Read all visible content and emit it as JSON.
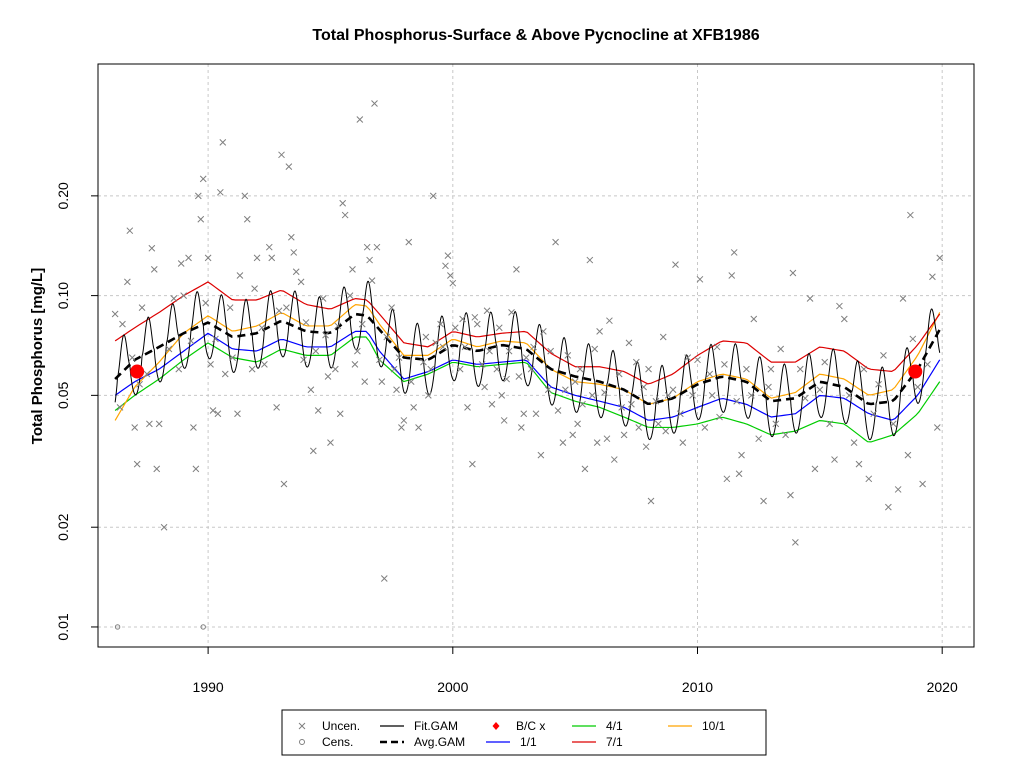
{
  "chart_data": {
    "type": "scatter",
    "title": "Total Phosphorus-Surface & Above Pycnocline at XFB1986",
    "xlabel": "",
    "ylabel": "Total Phosphorus [mg/L]",
    "xlim": [
      1985.5,
      2021.3
    ],
    "ylim": [
      0.0087,
      0.5
    ],
    "y_scale": "log",
    "grid": true,
    "x_ticks": [
      1990,
      2000,
      2010,
      2020
    ],
    "x_tick_labels": [
      "1990",
      "2000",
      "2010",
      "2020"
    ],
    "y_ticks": [
      0.01,
      0.02,
      0.05,
      0.1,
      0.2
    ],
    "y_tick_labels": [
      "0.01",
      "0.02",
      "0.05",
      "0.10",
      "0.20"
    ],
    "legend_position": "bottom",
    "colors": {
      "uncen": "#7f7f7f",
      "cens": "#7f7f7f",
      "fit": "#000000",
      "avg": "#000000",
      "bc": "#ff0000",
      "s11": "#0000ff",
      "s41": "#00cc00",
      "s71": "#dd0000",
      "s101": "#ffa500"
    },
    "legend": [
      {
        "key": "uncen",
        "label": "Uncen.",
        "symbol": "x"
      },
      {
        "key": "cens",
        "label": "Cens.",
        "symbol": "o"
      },
      {
        "key": "fit",
        "label": "Fit.GAM",
        "symbol": "line"
      },
      {
        "key": "avg",
        "label": "Avg.GAM",
        "symbol": "dash"
      },
      {
        "key": "bc",
        "label": "B/C x",
        "symbol": "diamond"
      },
      {
        "key": "s11",
        "label": "1/1",
        "symbol": "line"
      },
      {
        "key": "s41",
        "label": "4/1",
        "symbol": "line"
      },
      {
        "key": "s71",
        "label": "7/1",
        "symbol": "line"
      },
      {
        "key": "s101",
        "label": "10/1",
        "symbol": "line"
      }
    ],
    "bc_points": [
      {
        "x": 1987.1,
        "y": 0.059
      },
      {
        "x": 2018.9,
        "y": 0.059
      }
    ],
    "avg_gam": {
      "x": [
        1986.2,
        1987.0,
        1988.0,
        1989.0,
        1990.0,
        1991.0,
        1992.0,
        1993.0,
        1994.0,
        1995.0,
        1996.0,
        1996.5,
        1997.0,
        1998.0,
        1999.0,
        2000.0,
        2001.0,
        2002.0,
        2003.0,
        2004.0,
        2005.0,
        2006.0,
        2007.0,
        2008.0,
        2009.0,
        2010.0,
        2011.0,
        2012.0,
        2013.0,
        2014.0,
        2015.0,
        2016.0,
        2017.0,
        2018.0,
        2019.0,
        2019.9
      ],
      "y": [
        0.056,
        0.064,
        0.07,
        0.077,
        0.083,
        0.075,
        0.077,
        0.084,
        0.078,
        0.077,
        0.088,
        0.087,
        0.079,
        0.065,
        0.064,
        0.071,
        0.068,
        0.071,
        0.069,
        0.06,
        0.057,
        0.055,
        0.052,
        0.047,
        0.049,
        0.054,
        0.057,
        0.055,
        0.048,
        0.049,
        0.055,
        0.053,
        0.047,
        0.048,
        0.06,
        0.079
      ]
    },
    "series_1_1": {
      "x": [
        1986.2,
        1987.0,
        1988.0,
        1989.0,
        1990.0,
        1991.0,
        1992.0,
        1993.0,
        1994.0,
        1995.0,
        1996.0,
        1996.5,
        1997.0,
        1998.0,
        1999.0,
        2000.0,
        2001.0,
        2002.0,
        2003.0,
        2004.0,
        2005.0,
        2006.0,
        2007.0,
        2008.0,
        2009.0,
        2010.0,
        2011.0,
        2012.0,
        2013.0,
        2014.0,
        2015.0,
        2016.0,
        2017.0,
        2018.0,
        2019.0,
        2019.9
      ],
      "y": [
        0.05,
        0.055,
        0.06,
        0.068,
        0.077,
        0.069,
        0.068,
        0.074,
        0.07,
        0.07,
        0.078,
        0.078,
        0.068,
        0.056,
        0.059,
        0.064,
        0.062,
        0.063,
        0.064,
        0.053,
        0.05,
        0.048,
        0.046,
        0.042,
        0.043,
        0.046,
        0.049,
        0.047,
        0.043,
        0.044,
        0.05,
        0.049,
        0.044,
        0.042,
        0.05,
        0.064
      ]
    },
    "series_4_1": {
      "x": [
        1986.2,
        1987.0,
        1988.0,
        1989.0,
        1990.0,
        1991.0,
        1992.0,
        1993.0,
        1994.0,
        1995.0,
        1996.0,
        1996.5,
        1997.0,
        1998.0,
        1999.0,
        2000.0,
        2001.0,
        2002.0,
        2003.0,
        2004.0,
        2005.0,
        2006.0,
        2007.0,
        2008.0,
        2009.0,
        2010.0,
        2011.0,
        2012.0,
        2013.0,
        2014.0,
        2015.0,
        2016.0,
        2017.0,
        2018.0,
        2019.0,
        2019.9
      ],
      "y": [
        0.045,
        0.05,
        0.056,
        0.064,
        0.072,
        0.065,
        0.063,
        0.069,
        0.066,
        0.066,
        0.075,
        0.075,
        0.064,
        0.055,
        0.058,
        0.063,
        0.061,
        0.062,
        0.063,
        0.051,
        0.048,
        0.046,
        0.043,
        0.04,
        0.04,
        0.041,
        0.043,
        0.041,
        0.038,
        0.039,
        0.042,
        0.041,
        0.036,
        0.038,
        0.044,
        0.055
      ]
    },
    "series_7_1": {
      "x": [
        1986.2,
        1987.0,
        1988.0,
        1989.0,
        1990.0,
        1991.0,
        1992.0,
        1993.0,
        1994.0,
        1995.0,
        1996.0,
        1996.5,
        1997.0,
        1998.0,
        1999.0,
        2000.0,
        2001.0,
        2002.0,
        2003.0,
        2004.0,
        2005.0,
        2006.0,
        2007.0,
        2008.0,
        2009.0,
        2010.0,
        2011.0,
        2012.0,
        2013.0,
        2014.0,
        2015.0,
        2016.0,
        2017.0,
        2018.0,
        2019.0,
        2019.9
      ],
      "y": [
        0.073,
        0.08,
        0.089,
        0.1,
        0.11,
        0.097,
        0.097,
        0.104,
        0.094,
        0.091,
        0.098,
        0.097,
        0.088,
        0.072,
        0.07,
        0.078,
        0.075,
        0.077,
        0.078,
        0.067,
        0.061,
        0.061,
        0.059,
        0.054,
        0.058,
        0.066,
        0.073,
        0.072,
        0.063,
        0.063,
        0.07,
        0.068,
        0.06,
        0.059,
        0.071,
        0.088
      ]
    },
    "series_10_1": {
      "x": [
        1986.2,
        1987.0,
        1988.0,
        1989.0,
        1990.0,
        1991.0,
        1992.0,
        1993.0,
        1994.0,
        1995.0,
        1996.0,
        1996.5,
        1997.0,
        1998.0,
        1999.0,
        2000.0,
        2001.0,
        2002.0,
        2003.0,
        2004.0,
        2005.0,
        2006.0,
        2007.0,
        2008.0,
        2009.0,
        2010.0,
        2011.0,
        2012.0,
        2013.0,
        2014.0,
        2015.0,
        2016.0,
        2017.0,
        2018.0,
        2019.0,
        2019.9
      ],
      "y": [
        0.042,
        0.053,
        0.063,
        0.077,
        0.087,
        0.078,
        0.081,
        0.089,
        0.081,
        0.081,
        0.094,
        0.093,
        0.082,
        0.066,
        0.066,
        0.074,
        0.07,
        0.073,
        0.072,
        0.06,
        0.055,
        0.054,
        0.052,
        0.047,
        0.049,
        0.055,
        0.058,
        0.056,
        0.049,
        0.051,
        0.058,
        0.056,
        0.05,
        0.052,
        0.066,
        0.089
      ]
    },
    "fit_gam": {
      "x_start": 1986.2,
      "x_end": 2019.9,
      "period_years": 1.0,
      "peak_phase": 0.55,
      "amplitude_log": 0.33,
      "note_base": "avg_gam"
    },
    "uncen_points": [
      [
        1986.2,
        0.088
      ],
      [
        1986.4,
        0.046
      ],
      [
        1986.5,
        0.082
      ],
      [
        1986.7,
        0.11
      ],
      [
        1986.8,
        0.157
      ],
      [
        1986.9,
        0.065
      ],
      [
        1987.0,
        0.04
      ],
      [
        1987.1,
        0.031
      ],
      [
        1987.2,
        0.054
      ],
      [
        1987.3,
        0.092
      ],
      [
        1987.5,
        0.058
      ],
      [
        1987.6,
        0.041
      ],
      [
        1987.7,
        0.139
      ],
      [
        1987.8,
        0.12
      ],
      [
        1987.9,
        0.03
      ],
      [
        1988.0,
        0.041
      ],
      [
        1988.2,
        0.02
      ],
      [
        1988.4,
        0.069
      ],
      [
        1988.6,
        0.098
      ],
      [
        1988.8,
        0.06
      ],
      [
        1988.9,
        0.125
      ],
      [
        1989.0,
        0.1
      ],
      [
        1989.2,
        0.13
      ],
      [
        1989.3,
        0.073
      ],
      [
        1989.4,
        0.04
      ],
      [
        1989.5,
        0.03
      ],
      [
        1989.6,
        0.2
      ],
      [
        1989.7,
        0.17
      ],
      [
        1989.8,
        0.225
      ],
      [
        1989.9,
        0.095
      ],
      [
        1990.0,
        0.13
      ],
      [
        1990.1,
        0.062
      ],
      [
        1990.2,
        0.045
      ],
      [
        1990.3,
        0.074
      ],
      [
        1990.4,
        0.044
      ],
      [
        1990.5,
        0.205
      ],
      [
        1990.6,
        0.29
      ],
      [
        1990.7,
        0.058
      ],
      [
        1990.9,
        0.092
      ],
      [
        1991.0,
        0.065
      ],
      [
        1991.2,
        0.044
      ],
      [
        1991.3,
        0.115
      ],
      [
        1991.5,
        0.2
      ],
      [
        1991.6,
        0.17
      ],
      [
        1991.8,
        0.06
      ],
      [
        1991.9,
        0.105
      ],
      [
        1992.0,
        0.13
      ],
      [
        1992.2,
        0.08
      ],
      [
        1992.3,
        0.062
      ],
      [
        1992.5,
        0.14
      ],
      [
        1992.6,
        0.13
      ],
      [
        1992.8,
        0.046
      ],
      [
        1992.9,
        0.09
      ],
      [
        1993.0,
        0.266
      ],
      [
        1993.1,
        0.027
      ],
      [
        1993.2,
        0.092
      ],
      [
        1993.3,
        0.245
      ],
      [
        1993.4,
        0.15
      ],
      [
        1993.5,
        0.135
      ],
      [
        1993.6,
        0.118
      ],
      [
        1993.8,
        0.11
      ],
      [
        1993.9,
        0.064
      ],
      [
        1994.0,
        0.083
      ],
      [
        1994.2,
        0.052
      ],
      [
        1994.3,
        0.034
      ],
      [
        1994.4,
        0.068
      ],
      [
        1994.5,
        0.045
      ],
      [
        1994.7,
        0.098
      ],
      [
        1994.8,
        0.076
      ],
      [
        1994.9,
        0.057
      ],
      [
        1995.0,
        0.036
      ],
      [
        1995.2,
        0.06
      ],
      [
        1995.3,
        0.081
      ],
      [
        1995.4,
        0.044
      ],
      [
        1995.5,
        0.19
      ],
      [
        1995.6,
        0.175
      ],
      [
        1995.8,
        0.1
      ],
      [
        1995.9,
        0.12
      ],
      [
        1996.0,
        0.062
      ],
      [
        1996.1,
        0.068
      ],
      [
        1996.2,
        0.34
      ],
      [
        1996.3,
        0.082
      ],
      [
        1996.4,
        0.055
      ],
      [
        1996.5,
        0.14
      ],
      [
        1996.6,
        0.128
      ],
      [
        1996.7,
        0.111
      ],
      [
        1996.8,
        0.38
      ],
      [
        1996.9,
        0.14
      ],
      [
        1997.0,
        0.064
      ],
      [
        1997.1,
        0.055
      ],
      [
        1997.2,
        0.014
      ],
      [
        1997.3,
        0.075
      ],
      [
        1997.5,
        0.092
      ],
      [
        1997.6,
        0.06
      ],
      [
        1997.7,
        0.052
      ],
      [
        1997.8,
        0.065
      ],
      [
        1997.9,
        0.04
      ],
      [
        1998.0,
        0.042
      ],
      [
        1998.2,
        0.145
      ],
      [
        1998.3,
        0.055
      ],
      [
        1998.4,
        0.046
      ],
      [
        1998.6,
        0.04
      ],
      [
        1998.8,
        0.063
      ],
      [
        1998.9,
        0.075
      ],
      [
        1999.0,
        0.05
      ],
      [
        1999.1,
        0.06
      ],
      [
        1999.2,
        0.2
      ],
      [
        1999.3,
        0.072
      ],
      [
        1999.5,
        0.082
      ],
      [
        1999.6,
        0.07
      ],
      [
        1999.7,
        0.123
      ],
      [
        1999.8,
        0.132
      ],
      [
        1999.9,
        0.115
      ],
      [
        2000.0,
        0.109
      ],
      [
        2000.1,
        0.08
      ],
      [
        2000.3,
        0.06
      ],
      [
        2000.4,
        0.085
      ],
      [
        2000.5,
        0.07
      ],
      [
        2000.6,
        0.046
      ],
      [
        2000.8,
        0.031
      ],
      [
        2000.9,
        0.086
      ],
      [
        2001.0,
        0.082
      ],
      [
        2001.2,
        0.062
      ],
      [
        2001.3,
        0.053
      ],
      [
        2001.4,
        0.09
      ],
      [
        2001.5,
        0.068
      ],
      [
        2001.6,
        0.047
      ],
      [
        2001.8,
        0.06
      ],
      [
        2001.9,
        0.08
      ],
      [
        2002.0,
        0.05
      ],
      [
        2002.1,
        0.042
      ],
      [
        2002.2,
        0.056
      ],
      [
        2002.3,
        0.068
      ],
      [
        2002.4,
        0.089
      ],
      [
        2002.6,
        0.12
      ],
      [
        2002.7,
        0.057
      ],
      [
        2002.8,
        0.04
      ],
      [
        2002.9,
        0.044
      ],
      [
        2003.0,
        0.065
      ],
      [
        2003.2,
        0.06
      ],
      [
        2003.3,
        0.07
      ],
      [
        2003.4,
        0.044
      ],
      [
        2003.6,
        0.033
      ],
      [
        2003.7,
        0.078
      ],
      [
        2003.9,
        0.052
      ],
      [
        2004.0,
        0.068
      ],
      [
        2004.2,
        0.145
      ],
      [
        2004.3,
        0.045
      ],
      [
        2004.5,
        0.036
      ],
      [
        2004.6,
        0.052
      ],
      [
        2004.7,
        0.066
      ],
      [
        2004.9,
        0.038
      ],
      [
        2005.0,
        0.055
      ],
      [
        2005.1,
        0.041
      ],
      [
        2005.2,
        0.06
      ],
      [
        2005.3,
        0.047
      ],
      [
        2005.4,
        0.03
      ],
      [
        2005.6,
        0.128
      ],
      [
        2005.7,
        0.05
      ],
      [
        2005.8,
        0.069
      ],
      [
        2005.9,
        0.036
      ],
      [
        2006.0,
        0.078
      ],
      [
        2006.2,
        0.051
      ],
      [
        2006.3,
        0.037
      ],
      [
        2006.4,
        0.084
      ],
      [
        2006.6,
        0.032
      ],
      [
        2006.8,
        0.058
      ],
      [
        2006.9,
        0.046
      ],
      [
        2007.0,
        0.038
      ],
      [
        2007.2,
        0.072
      ],
      [
        2007.3,
        0.047
      ],
      [
        2007.5,
        0.063
      ],
      [
        2007.6,
        0.04
      ],
      [
        2007.8,
        0.053
      ],
      [
        2007.9,
        0.035
      ],
      [
        2008.0,
        0.06
      ],
      [
        2008.1,
        0.024
      ],
      [
        2008.3,
        0.048
      ],
      [
        2008.4,
        0.041
      ],
      [
        2008.6,
        0.075
      ],
      [
        2008.7,
        0.039
      ],
      [
        2008.8,
        0.05
      ],
      [
        2009.0,
        0.052
      ],
      [
        2009.1,
        0.124
      ],
      [
        2009.3,
        0.044
      ],
      [
        2009.4,
        0.036
      ],
      [
        2009.6,
        0.065
      ],
      [
        2009.8,
        0.05
      ],
      [
        2010.0,
        0.064
      ],
      [
        2010.1,
        0.112
      ],
      [
        2010.3,
        0.04
      ],
      [
        2010.5,
        0.058
      ],
      [
        2010.6,
        0.05
      ],
      [
        2010.8,
        0.07
      ],
      [
        2010.9,
        0.043
      ],
      [
        2011.1,
        0.062
      ],
      [
        2011.2,
        0.028
      ],
      [
        2011.4,
        0.115
      ],
      [
        2011.5,
        0.135
      ],
      [
        2011.6,
        0.048
      ],
      [
        2011.7,
        0.029
      ],
      [
        2011.8,
        0.033
      ],
      [
        2012.0,
        0.06
      ],
      [
        2012.2,
        0.05
      ],
      [
        2012.3,
        0.085
      ],
      [
        2012.5,
        0.037
      ],
      [
        2012.7,
        0.024
      ],
      [
        2012.9,
        0.053
      ],
      [
        2013.0,
        0.06
      ],
      [
        2013.2,
        0.041
      ],
      [
        2013.4,
        0.069
      ],
      [
        2013.6,
        0.038
      ],
      [
        2013.8,
        0.025
      ],
      [
        2013.9,
        0.117
      ],
      [
        2014.0,
        0.018
      ],
      [
        2014.2,
        0.06
      ],
      [
        2014.4,
        0.049
      ],
      [
        2014.6,
        0.098
      ],
      [
        2014.8,
        0.03
      ],
      [
        2015.0,
        0.052
      ],
      [
        2015.2,
        0.063
      ],
      [
        2015.4,
        0.041
      ],
      [
        2015.6,
        0.032
      ],
      [
        2015.8,
        0.093
      ],
      [
        2016.0,
        0.085
      ],
      [
        2016.2,
        0.05
      ],
      [
        2016.4,
        0.036
      ],
      [
        2016.6,
        0.031
      ],
      [
        2016.8,
        0.06
      ],
      [
        2017.0,
        0.028
      ],
      [
        2017.2,
        0.044
      ],
      [
        2017.4,
        0.054
      ],
      [
        2017.6,
        0.066
      ],
      [
        2017.8,
        0.023
      ],
      [
        2018.0,
        0.041
      ],
      [
        2018.2,
        0.026
      ],
      [
        2018.4,
        0.098
      ],
      [
        2018.6,
        0.033
      ],
      [
        2018.7,
        0.175
      ],
      [
        2018.8,
        0.074
      ],
      [
        2019.0,
        0.053
      ],
      [
        2019.2,
        0.027
      ],
      [
        2019.4,
        0.062
      ],
      [
        2019.6,
        0.114
      ],
      [
        2019.8,
        0.04
      ],
      [
        2019.9,
        0.13
      ]
    ],
    "cens_points": [
      [
        1986.3,
        0.01
      ],
      [
        1989.8,
        0.01
      ]
    ]
  }
}
